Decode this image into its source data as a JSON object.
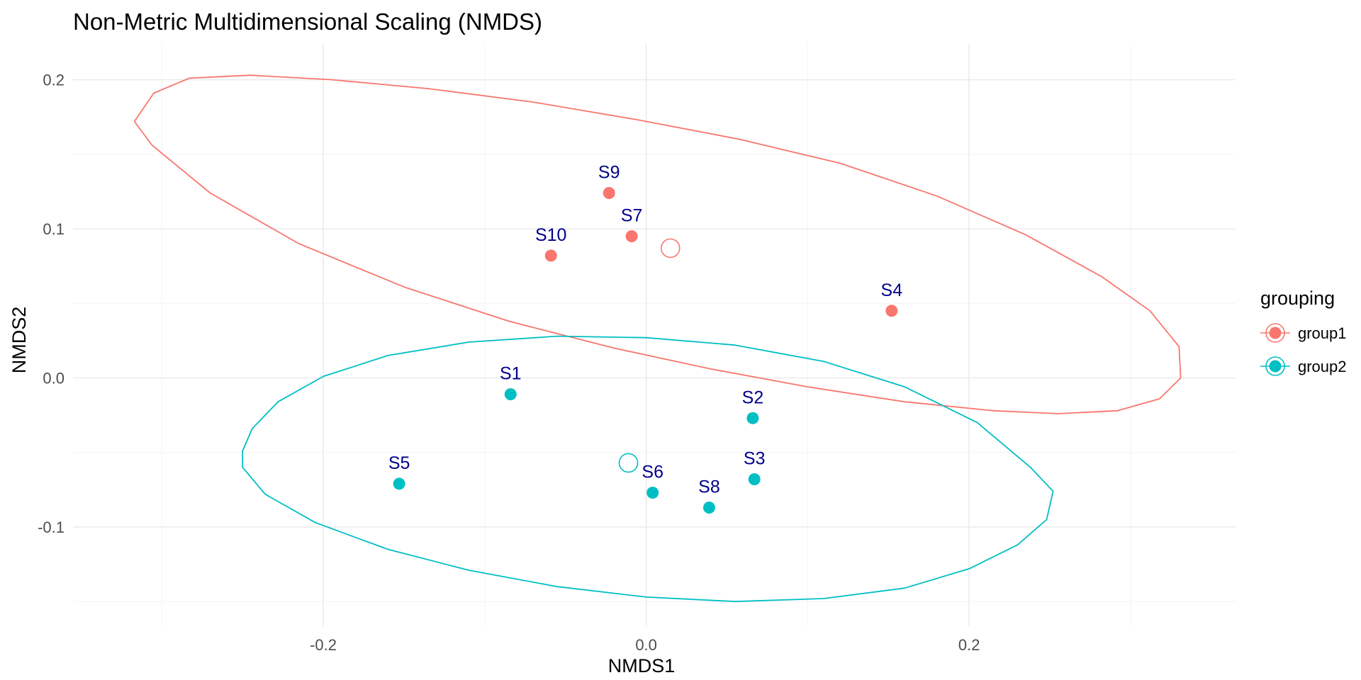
{
  "chart_data": {
    "type": "scatter",
    "title": "Non-Metric Multidimensional Scaling (NMDS)",
    "xlabel": "NMDS1",
    "ylabel": "NMDS2",
    "xlim": [
      -0.355,
      0.365
    ],
    "ylim": [
      -0.167,
      0.224
    ],
    "x_ticks": [
      -0.2,
      0.0,
      0.2
    ],
    "x_tick_labels": [
      "-0.2",
      "0.0",
      "0.2"
    ],
    "y_ticks": [
      -0.1,
      0.0,
      0.1,
      0.2
    ],
    "y_tick_labels": [
      "-0.1",
      "0.0",
      "0.1",
      "0.2"
    ],
    "grid": true,
    "legend": {
      "title": "grouping",
      "position": "right",
      "entries": [
        "group1",
        "group2"
      ]
    },
    "label_color": "#00008b",
    "series": [
      {
        "name": "group1",
        "color": "#f8766d",
        "points": [
          {
            "label": "S9",
            "x": -0.023,
            "y": 0.124
          },
          {
            "label": "S7",
            "x": -0.009,
            "y": 0.095
          },
          {
            "label": "S10",
            "x": -0.059,
            "y": 0.082
          },
          {
            "label": "S4",
            "x": 0.152,
            "y": 0.045
          }
        ],
        "centroid": {
          "x": 0.015,
          "y": 0.087
        },
        "ellipse": [
          [
            -0.317,
            0.172
          ],
          [
            -0.305,
            0.191
          ],
          [
            -0.283,
            0.201
          ],
          [
            -0.245,
            0.203
          ],
          [
            -0.195,
            0.2
          ],
          [
            -0.135,
            0.194
          ],
          [
            -0.07,
            0.185
          ],
          [
            -0.005,
            0.173
          ],
          [
            0.058,
            0.16
          ],
          [
            0.12,
            0.144
          ],
          [
            0.18,
            0.122
          ],
          [
            0.235,
            0.096
          ],
          [
            0.282,
            0.068
          ],
          [
            0.312,
            0.045
          ],
          [
            0.33,
            0.021
          ],
          [
            0.331,
            0.0
          ],
          [
            0.318,
            -0.014
          ],
          [
            0.292,
            -0.022
          ],
          [
            0.255,
            -0.024
          ],
          [
            0.215,
            -0.022
          ],
          [
            0.16,
            -0.016
          ],
          [
            0.1,
            -0.006
          ],
          [
            0.04,
            0.006
          ],
          [
            -0.02,
            0.02
          ],
          [
            -0.085,
            0.038
          ],
          [
            -0.15,
            0.061
          ],
          [
            -0.215,
            0.09
          ],
          [
            -0.27,
            0.124
          ],
          [
            -0.306,
            0.156
          ],
          [
            -0.317,
            0.172
          ]
        ]
      },
      {
        "name": "group2",
        "color": "#00bfc4",
        "points": [
          {
            "label": "S1",
            "x": -0.084,
            "y": -0.011
          },
          {
            "label": "S2",
            "x": 0.066,
            "y": -0.027
          },
          {
            "label": "S5",
            "x": -0.153,
            "y": -0.071
          },
          {
            "label": "S6",
            "x": 0.004,
            "y": -0.077
          },
          {
            "label": "S8",
            "x": 0.039,
            "y": -0.087
          },
          {
            "label": "S3",
            "x": 0.067,
            "y": -0.068
          }
        ],
        "centroid": {
          "x": -0.011,
          "y": -0.057
        },
        "ellipse": [
          [
            -0.25,
            -0.049
          ],
          [
            -0.244,
            -0.034
          ],
          [
            -0.228,
            -0.016
          ],
          [
            -0.2,
            0.001
          ],
          [
            -0.16,
            0.015
          ],
          [
            -0.11,
            0.024
          ],
          [
            -0.055,
            0.028
          ],
          [
            0.0,
            0.027
          ],
          [
            0.055,
            0.022
          ],
          [
            0.11,
            0.011
          ],
          [
            0.16,
            -0.006
          ],
          [
            0.205,
            -0.03
          ],
          [
            0.238,
            -0.06
          ],
          [
            0.252,
            -0.076
          ],
          [
            0.248,
            -0.095
          ],
          [
            0.23,
            -0.112
          ],
          [
            0.2,
            -0.128
          ],
          [
            0.16,
            -0.141
          ],
          [
            0.11,
            -0.148
          ],
          [
            0.055,
            -0.15
          ],
          [
            0.0,
            -0.147
          ],
          [
            -0.055,
            -0.14
          ],
          [
            -0.11,
            -0.129
          ],
          [
            -0.16,
            -0.115
          ],
          [
            -0.205,
            -0.097
          ],
          [
            -0.236,
            -0.078
          ],
          [
            -0.25,
            -0.06
          ],
          [
            -0.25,
            -0.049
          ]
        ]
      }
    ]
  }
}
